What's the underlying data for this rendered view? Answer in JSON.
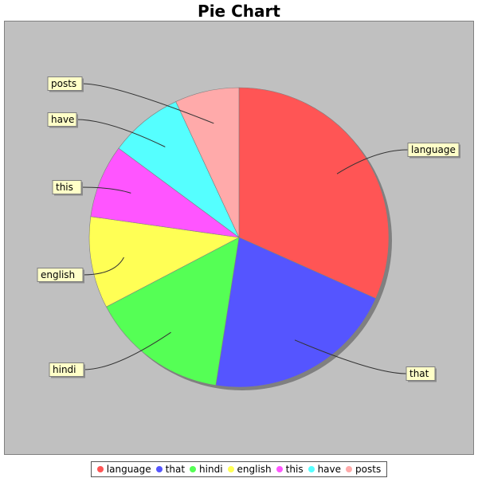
{
  "chart_data": {
    "type": "pie",
    "title": "Pie Chart",
    "categories": [
      "language",
      "that",
      "hindi",
      "english",
      "this",
      "have",
      "posts"
    ],
    "values": [
      32,
      21,
      15,
      10,
      8,
      8,
      7
    ],
    "colors": [
      "#ff5555",
      "#5555ff",
      "#55ff55",
      "#ffff55",
      "#ff55ff",
      "#55ffff",
      "#ffaaaa"
    ],
    "legend_placement": "bottom"
  }
}
